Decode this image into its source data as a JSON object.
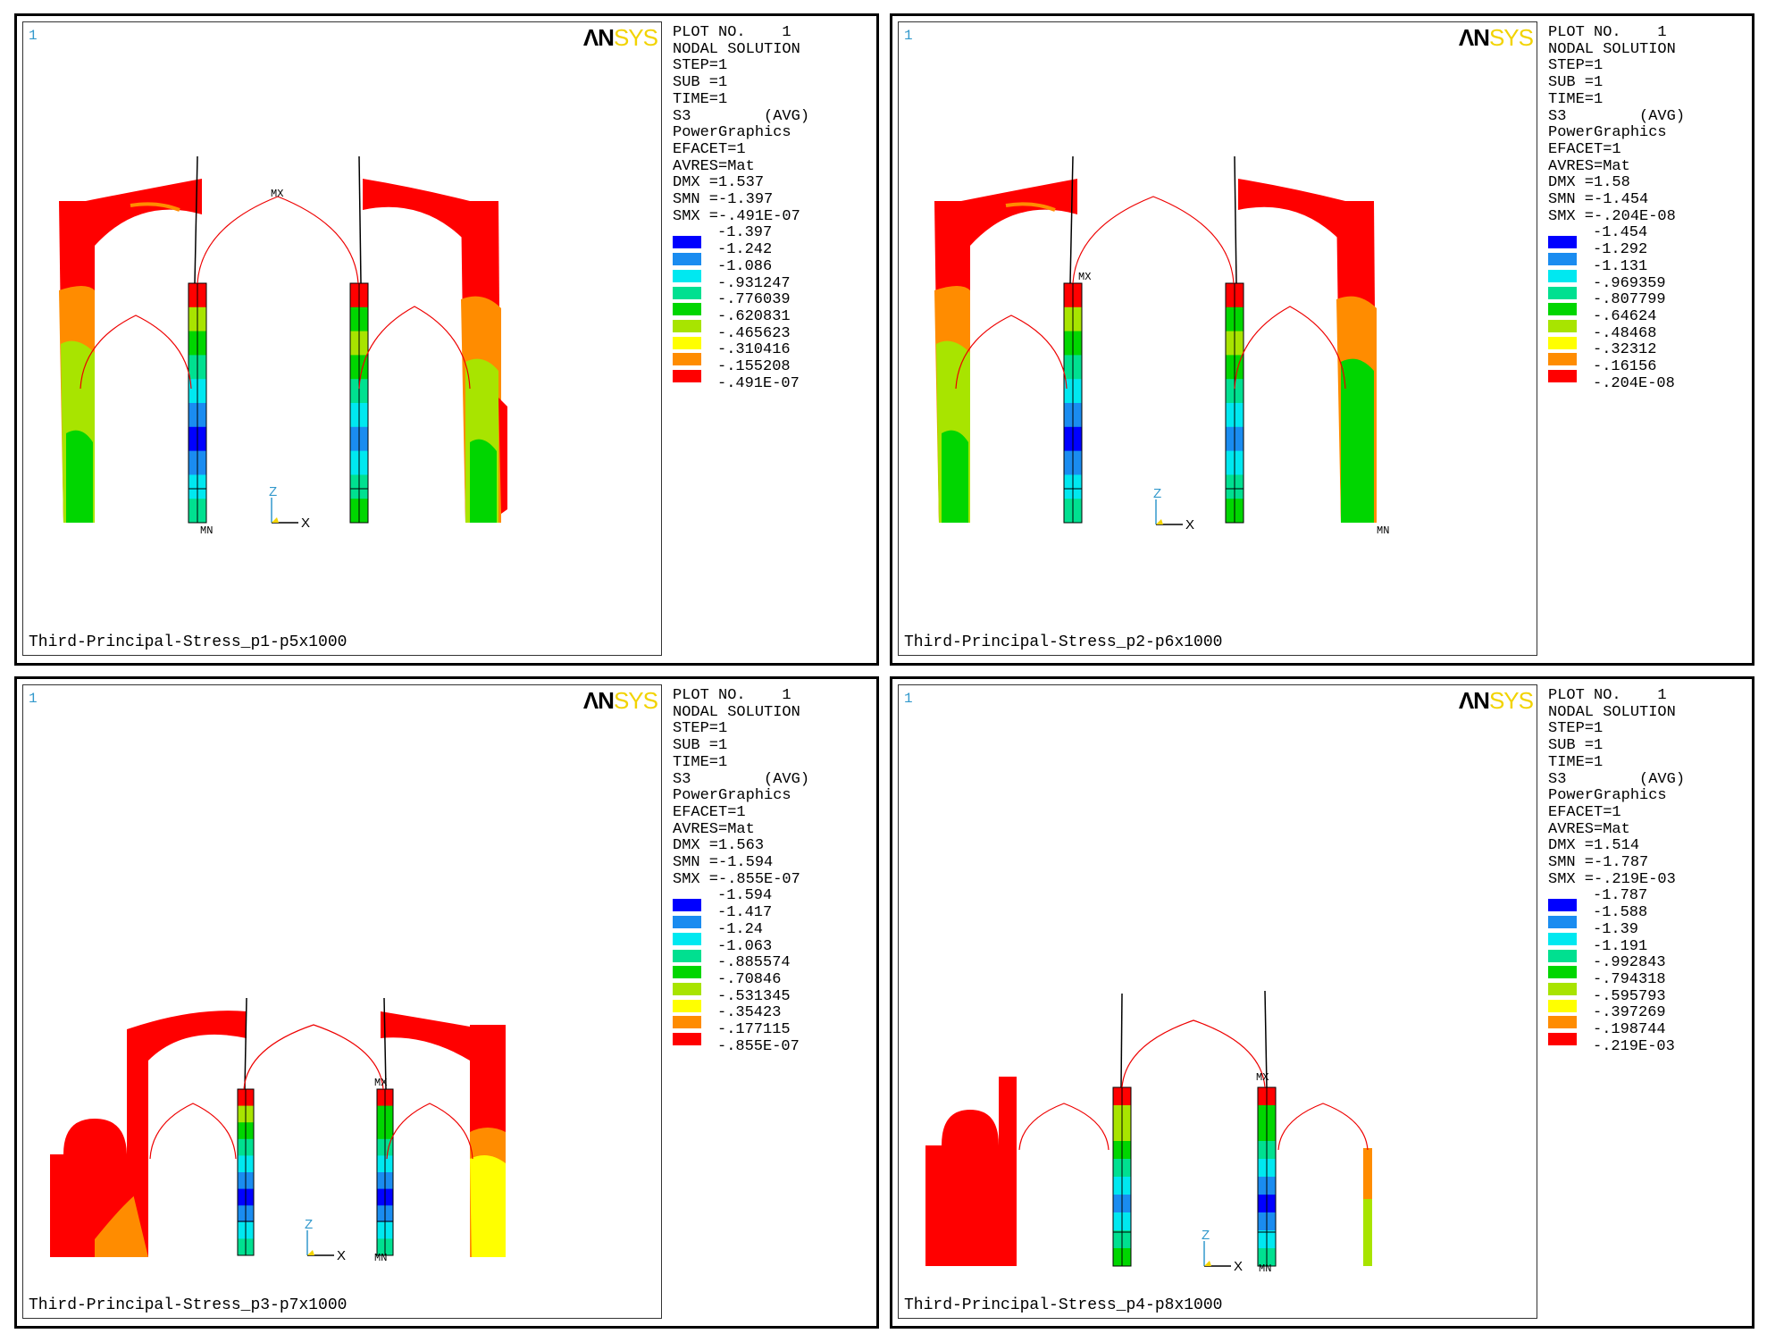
{
  "logo": {
    "an": "ΛN",
    "sys": "SYS"
  },
  "window_number": "1",
  "legend_header": [
    "PLOT NO.    1",
    "NODAL SOLUTION",
    "STEP=1",
    "SUB =1",
    "TIME=1",
    "S3        (AVG)",
    "PowerGraphics",
    "EFACET=1",
    "AVRES=Mat"
  ],
  "contour_colors": [
    "#0000ff",
    "#1a8cf0",
    "#00e8f0",
    "#00e090",
    "#00d600",
    "#a8e400",
    "#ffff00",
    "#ff8c00",
    "#ff0000"
  ],
  "markers": {
    "mx": "MX",
    "mn": "MN"
  },
  "axes": {
    "z": "Z",
    "x": "X"
  },
  "panels": [
    {
      "caption": "Third-Principal-Stress_p1-p5x1000",
      "dmx": "DMX =1.537",
      "smn": "SMN =-1.397",
      "smx": "SMX =-.491E-07",
      "levels": [
        "-1.397",
        "-1.242",
        "-1.086",
        "-.931247",
        "-.776039",
        "-.620831",
        "-.465623",
        "-.310416",
        "-.155208",
        "-.491E-07"
      ]
    },
    {
      "caption": "Third-Principal-Stress_p2-p6x1000",
      "dmx": "DMX =1.58",
      "smn": "SMN =-1.454",
      "smx": "SMX =-.204E-08",
      "levels": [
        "-1.454",
        "-1.292",
        "-1.131",
        "-.969359",
        "-.807799",
        "-.64624",
        "-.48468",
        "-.32312",
        "-.16156",
        "-.204E-08"
      ]
    },
    {
      "caption": "Third-Principal-Stress_p3-p7x1000",
      "dmx": "DMX =1.563",
      "smn": "SMN =-1.594",
      "smx": "SMX =-.855E-07",
      "levels": [
        "-1.594",
        "-1.417",
        "-1.24",
        "-1.063",
        "-.885574",
        "-.70846",
        "-.531345",
        "-.35423",
        "-.177115",
        "-.855E-07"
      ]
    },
    {
      "caption": "Third-Principal-Stress_p4-p8x1000",
      "dmx": "DMX =1.514",
      "smn": "SMN =-1.787",
      "smx": "SMX =-.219E-03",
      "levels": [
        "-1.787",
        "-1.588",
        "-1.39",
        "-1.191",
        "-.992843",
        "-.794318",
        "-.595793",
        "-.397269",
        "-.198744",
        "-.219E-03"
      ]
    }
  ]
}
